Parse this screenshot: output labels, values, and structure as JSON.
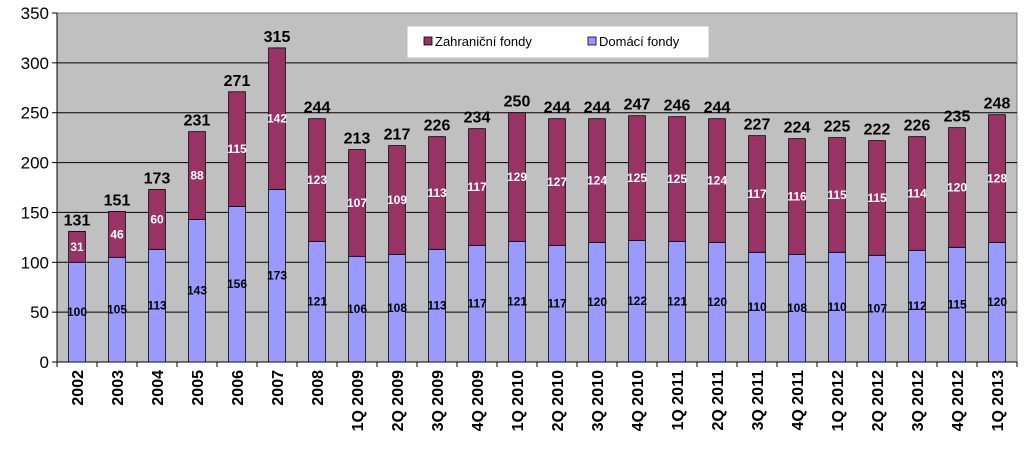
{
  "chart_data": {
    "type": "bar",
    "stacked": true,
    "title": "",
    "xlabel": "",
    "ylabel": "",
    "ylim": [
      0,
      350
    ],
    "yticks": [
      0,
      50,
      100,
      150,
      200,
      250,
      300,
      350
    ],
    "grid": true,
    "legend_position": "top-center",
    "plot_background": "#c0c0c0",
    "categories": [
      "2002",
      "2003",
      "2004",
      "2005",
      "2006",
      "2007",
      "2008",
      "1Q 2009",
      "2Q 2009",
      "3Q 2009",
      "4Q 2009",
      "1Q 2010",
      "2Q 2010",
      "3Q 2010",
      "4Q 2010",
      "1Q 2011",
      "2Q 2011",
      "3Q 2011",
      "4Q 2011",
      "1Q 2012",
      "2Q 2012",
      "3Q 2012",
      "4Q 2012",
      "1Q 2013"
    ],
    "series": [
      {
        "name": "Domácí fondy",
        "color": "#9999ff",
        "label_color": "#000000",
        "values": [
          100,
          105,
          113,
          143,
          156,
          173,
          121,
          106,
          108,
          113,
          117,
          121,
          117,
          120,
          122,
          121,
          120,
          110,
          108,
          110,
          107,
          112,
          115,
          120
        ]
      },
      {
        "name": "Zahraniční fondy",
        "color": "#993366",
        "label_color": "#ffffff",
        "values": [
          31,
          46,
          60,
          88,
          115,
          142,
          123,
          107,
          109,
          113,
          117,
          129,
          127,
          124,
          125,
          125,
          124,
          117,
          116,
          115,
          115,
          114,
          120,
          128
        ]
      }
    ],
    "totals": [
      131,
      151,
      173,
      231,
      271,
      315,
      244,
      213,
      217,
      226,
      234,
      250,
      244,
      244,
      247,
      246,
      244,
      227,
      224,
      225,
      222,
      226,
      235,
      248
    ],
    "legend_order": [
      "Zahraniční fondy",
      "Domácí fondy"
    ]
  }
}
